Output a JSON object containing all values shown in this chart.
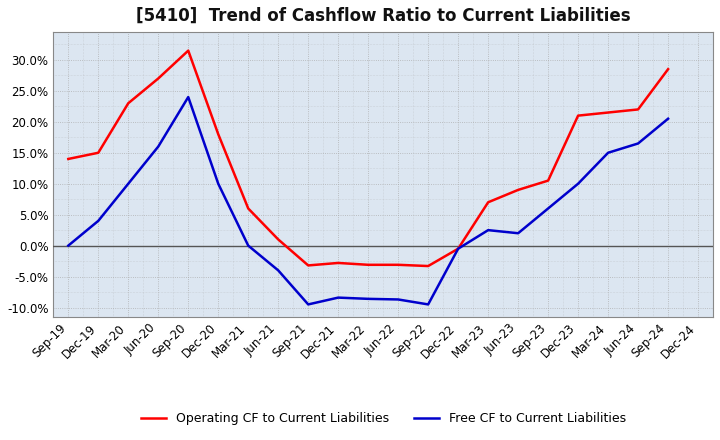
{
  "title": "[5410]  Trend of Cashflow Ratio to Current Liabilities",
  "x_labels": [
    "Sep-19",
    "Dec-19",
    "Mar-20",
    "Jun-20",
    "Sep-20",
    "Dec-20",
    "Mar-21",
    "Jun-21",
    "Sep-21",
    "Dec-21",
    "Mar-22",
    "Jun-22",
    "Sep-22",
    "Dec-22",
    "Mar-23",
    "Jun-23",
    "Sep-23",
    "Dec-23",
    "Mar-24",
    "Jun-24",
    "Sep-24",
    "Dec-24"
  ],
  "operating_cf": [
    0.14,
    0.15,
    0.23,
    0.27,
    0.315,
    0.18,
    0.06,
    0.01,
    -0.032,
    -0.028,
    -0.031,
    -0.031,
    -0.033,
    -0.005,
    0.07,
    0.09,
    0.105,
    0.21,
    0.215,
    0.22,
    0.285,
    null
  ],
  "free_cf": [
    0.0,
    0.04,
    0.1,
    0.16,
    0.24,
    0.1,
    0.0,
    -0.04,
    -0.095,
    -0.084,
    -0.086,
    -0.087,
    -0.095,
    -0.005,
    0.025,
    0.02,
    0.06,
    0.1,
    0.15,
    0.165,
    0.205,
    null
  ],
  "operating_color": "#ff0000",
  "free_color": "#0000cc",
  "ylim": [
    -0.115,
    0.345
  ],
  "yticks": [
    -0.1,
    -0.05,
    0.0,
    0.05,
    0.1,
    0.15,
    0.2,
    0.25,
    0.3
  ],
  "plot_bg_color": "#dce6f1",
  "figure_bg_color": "#ffffff",
  "grid_color": "#aaaaaa",
  "zero_line_color": "#555555",
  "spine_color": "#888888",
  "legend_op": "Operating CF to Current Liabilities",
  "legend_free": "Free CF to Current Liabilities",
  "title_fontsize": 12,
  "tick_fontsize": 8.5,
  "legend_fontsize": 9
}
